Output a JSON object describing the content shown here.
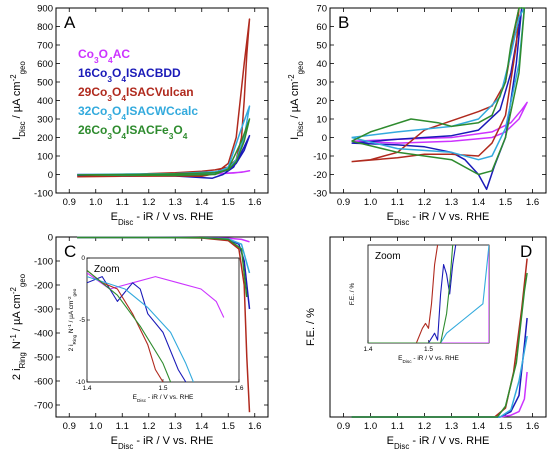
{
  "colors": {
    "AC": "#cc33ff",
    "BDD": "#1a1ab8",
    "Vulcan": "#b02a1e",
    "WCcalc": "#33aadd",
    "Fe": "#2e8b2e"
  },
  "chart_data": [
    {
      "panel": "A",
      "type": "line",
      "title": "A",
      "xlabel": "E_Disc - iR / V vs. RHE",
      "ylabel": "I_Disc / µA cm^-2_geo",
      "xlim": [
        0.85,
        1.65
      ],
      "ylim": [
        -100,
        900
      ],
      "xticks": [
        "0.9",
        "1.0",
        "1.1",
        "1.2",
        "1.3",
        "1.4",
        "1.5",
        "1.6"
      ],
      "yticks": [
        "-100",
        "0",
        "100",
        "200",
        "300",
        "400",
        "500",
        "600",
        "700",
        "800",
        "900"
      ],
      "legend": [
        "Co3O4AC",
        "16Co3O4ISACBDD",
        "29Co3O4ISACVulcan",
        "32Co3O4ISACWCcalc",
        "26Co3O4ISACFe3O4"
      ],
      "series": [
        {
          "key": "AC",
          "x": [
            0.93,
            1.1,
            1.3,
            1.45,
            1.52,
            1.56,
            1.58,
            1.55,
            1.45,
            1.3,
            1.1,
            0.93
          ],
          "y": [
            0,
            0,
            1,
            3,
            8,
            15,
            20,
            12,
            3,
            0,
            -1,
            0
          ]
        },
        {
          "key": "BDD",
          "x": [
            0.93,
            1.1,
            1.3,
            1.42,
            1.47,
            1.5,
            1.53,
            1.56,
            1.58,
            1.56,
            1.52,
            1.48,
            1.44,
            1.3,
            1.1,
            0.93
          ],
          "y": [
            -5,
            -4,
            0,
            5,
            12,
            25,
            60,
            130,
            210,
            150,
            40,
            0,
            -20,
            -8,
            -5,
            -5
          ]
        },
        {
          "key": "Vulcan",
          "x": [
            0.93,
            1.0,
            1.1,
            1.2,
            1.3,
            1.4,
            1.45,
            1.5,
            1.53,
            1.55,
            1.56,
            1.57,
            1.58,
            1.56,
            1.53,
            1.5,
            1.45,
            1.4,
            1.3,
            1.1,
            0.93
          ],
          "y": [
            -12,
            -10,
            -5,
            5,
            10,
            18,
            25,
            40,
            80,
            200,
            400,
            650,
            840,
            600,
            200,
            60,
            5,
            -10,
            -8,
            -10,
            -12
          ]
        },
        {
          "key": "WCcalc",
          "x": [
            0.93,
            1.1,
            1.3,
            1.45,
            1.5,
            1.53,
            1.56,
            1.58,
            1.55,
            1.5,
            1.45,
            1.3,
            1.1,
            0.93
          ],
          "y": [
            0,
            2,
            5,
            15,
            30,
            80,
            200,
            370,
            250,
            40,
            5,
            -3,
            -5,
            0
          ]
        },
        {
          "key": "Fe",
          "x": [
            0.93,
            1.1,
            1.3,
            1.45,
            1.5,
            1.53,
            1.56,
            1.58,
            1.55,
            1.5,
            1.45,
            1.3,
            1.1,
            0.93
          ],
          "y": [
            -2,
            0,
            3,
            10,
            25,
            70,
            180,
            300,
            180,
            30,
            0,
            -5,
            -3,
            -2
          ]
        }
      ]
    },
    {
      "panel": "B",
      "type": "line",
      "title": "B",
      "xlabel": "E_Disc - iR / V vs. RHE",
      "ylabel": "I_Disc / µA cm^-2_geo",
      "xlim": [
        0.85,
        1.65
      ],
      "ylim": [
        -30,
        70
      ],
      "xticks": [
        "0.9",
        "1.0",
        "1.1",
        "1.2",
        "1.3",
        "1.4",
        "1.5",
        "1.6"
      ],
      "yticks": [
        "-30",
        "-20",
        "-10",
        "0",
        "10",
        "20",
        "30",
        "40",
        "50",
        "60",
        "70"
      ],
      "series": [
        {
          "key": "AC",
          "x": [
            0.93,
            1.1,
            1.3,
            1.45,
            1.52,
            1.56,
            1.58,
            1.55,
            1.5,
            1.45,
            1.3,
            1.1,
            0.93
          ],
          "y": [
            -2,
            -1,
            0,
            3,
            8,
            15,
            19,
            10,
            3,
            0,
            -2,
            -3,
            -2
          ]
        },
        {
          "key": "BDD",
          "x": [
            0.93,
            1.1,
            1.3,
            1.4,
            1.48,
            1.52,
            1.55,
            1.56,
            1.54,
            1.5,
            1.46,
            1.43,
            1.4,
            1.35,
            1.3,
            1.2,
            1.1,
            0.93
          ],
          "y": [
            -3,
            -1,
            1,
            4,
            15,
            35,
            60,
            70,
            40,
            0,
            -15,
            -28,
            -20,
            -12,
            -8,
            -5,
            -4,
            -3
          ]
        },
        {
          "key": "Vulcan",
          "x": [
            0.93,
            1.0,
            1.1,
            1.2,
            1.3,
            1.4,
            1.45,
            1.5,
            1.53,
            1.55,
            1.54,
            1.5,
            1.45,
            1.4,
            1.3,
            1.2,
            1.1,
            0.93
          ],
          "y": [
            -13,
            -12,
            -8,
            4,
            9,
            14,
            17,
            30,
            55,
            70,
            50,
            12,
            -3,
            -10,
            -9,
            -9,
            -11,
            -13
          ]
        },
        {
          "key": "WCcalc",
          "x": [
            0.93,
            1.1,
            1.3,
            1.4,
            1.48,
            1.52,
            1.55,
            1.57,
            1.55,
            1.5,
            1.45,
            1.4,
            1.3,
            1.1,
            0.93
          ],
          "y": [
            0,
            3,
            6,
            10,
            22,
            45,
            65,
            70,
            40,
            5,
            -10,
            -12,
            -8,
            -6,
            0
          ]
        },
        {
          "key": "Fe",
          "x": [
            0.93,
            1.0,
            1.15,
            1.25,
            1.3,
            1.4,
            1.45,
            1.5,
            1.52,
            1.55,
            1.57,
            1.55,
            1.5,
            1.45,
            1.4,
            1.3,
            1.1,
            0.93
          ],
          "y": [
            -2,
            3,
            10,
            8,
            6,
            8,
            12,
            30,
            50,
            70,
            70,
            35,
            0,
            -18,
            -20,
            -12,
            -8,
            -2
          ]
        }
      ]
    },
    {
      "panel": "C",
      "type": "line",
      "title": "C",
      "xlabel": "E_Disc - iR / V vs. RHE",
      "ylabel": "2 i_Ring N^-1 / µA cm^-2_geo",
      "xlim": [
        0.85,
        1.65
      ],
      "ylim": [
        -750,
        0
      ],
      "xticks": [
        "0.9",
        "1.0",
        "1.1",
        "1.2",
        "1.3",
        "1.4",
        "1.5",
        "1.6"
      ],
      "yticks": [
        "0",
        "-100",
        "-200",
        "-300",
        "-400",
        "-500",
        "-600",
        "-700"
      ],
      "series": [
        {
          "key": "AC",
          "x": [
            0.93,
            1.2,
            1.4,
            1.5,
            1.55,
            1.58
          ],
          "y": [
            -2,
            -2,
            -3,
            -5,
            -10,
            -20
          ]
        },
        {
          "key": "BDD",
          "x": [
            0.93,
            1.2,
            1.4,
            1.5,
            1.54,
            1.56,
            1.58
          ],
          "y": [
            -2,
            -2,
            -3,
            -10,
            -30,
            -100,
            -300
          ]
        },
        {
          "key": "Vulcan",
          "x": [
            0.93,
            1.2,
            1.4,
            1.5,
            1.54,
            1.56,
            1.57,
            1.58
          ],
          "y": [
            -2,
            -2,
            -4,
            -15,
            -50,
            -200,
            -500,
            -730
          ]
        },
        {
          "key": "WCcalc",
          "x": [
            0.93,
            1.2,
            1.4,
            1.5,
            1.55,
            1.58
          ],
          "y": [
            -2,
            -2,
            -3,
            -8,
            -30,
            -150
          ]
        },
        {
          "key": "Fe",
          "x": [
            0.93,
            1.2,
            1.4,
            1.5,
            1.55,
            1.57
          ],
          "y": [
            -2,
            -2,
            -3,
            -10,
            -50,
            -250
          ]
        }
      ],
      "inset": {
        "title": "Zoom",
        "xlabel": "E_Disc - iR / V vs. RHE",
        "ylabel": "2 i_Ring N^-1 / µA cm^-2_geo",
        "xlim": [
          1.4,
          1.6
        ],
        "ylim": [
          -10,
          0
        ],
        "xticks": [
          "1.4",
          "1.5",
          "1.6"
        ],
        "yticks": [
          "0",
          "-5",
          "-10"
        ],
        "series": [
          {
            "key": "AC",
            "x": [
              1.4,
              1.43,
              1.46,
              1.49,
              1.52,
              1.55,
              1.57,
              1.58
            ],
            "y": [
              -1.2,
              -2.5,
              -2.0,
              -1.5,
              -2.0,
              -2.5,
              -3.5,
              -4.8
            ]
          },
          {
            "key": "BDD",
            "x": [
              1.4,
              1.42,
              1.44,
              1.46,
              1.47,
              1.48,
              1.5,
              1.52,
              1.53
            ],
            "y": [
              -2.0,
              -1.5,
              -3.5,
              -2.0,
              -2.5,
              -4.5,
              -6.0,
              -9.0,
              -10.0
            ]
          },
          {
            "key": "Vulcan",
            "x": [
              1.4,
              1.42,
              1.44,
              1.46,
              1.48,
              1.49,
              1.5
            ],
            "y": [
              -1.0,
              -2.0,
              -2.5,
              -4.5,
              -7.0,
              -9.0,
              -10.0
            ]
          },
          {
            "key": "WCcalc",
            "x": [
              1.4,
              1.45,
              1.48,
              1.51,
              1.53,
              1.54
            ],
            "y": [
              -1.5,
              -2.5,
              -4.0,
              -6.0,
              -8.5,
              -10.0
            ]
          },
          {
            "key": "Fe",
            "x": [
              1.4,
              1.44,
              1.47,
              1.5,
              1.51
            ],
            "y": [
              -1.0,
              -3.0,
              -5.5,
              -8.5,
              -10.0
            ]
          }
        ]
      }
    },
    {
      "panel": "D",
      "type": "line",
      "title": "D",
      "xlabel": "E_Disc - iR / V vs. RHE",
      "ylabel": "F.E. / %",
      "xlim": [
        0.85,
        1.65
      ],
      "ylim": [
        0,
        100
      ],
      "xticks": [
        "0.9",
        "1.0",
        "1.1",
        "1.2",
        "1.3",
        "1.4",
        "1.5",
        "1.6"
      ],
      "yticks": [],
      "series": [
        {
          "key": "AC",
          "x": [
            0.93,
            1.48,
            1.52,
            1.55,
            1.57,
            1.58
          ],
          "y": [
            0,
            0,
            1,
            3,
            10,
            25
          ]
        },
        {
          "key": "BDD",
          "x": [
            0.93,
            1.48,
            1.52,
            1.55,
            1.57,
            1.58
          ],
          "y": [
            0,
            0,
            3,
            12,
            40,
            55
          ]
        },
        {
          "key": "Vulcan",
          "x": [
            0.93,
            1.46,
            1.5,
            1.53,
            1.56,
            1.58
          ],
          "y": [
            0,
            0,
            5,
            25,
            60,
            88
          ]
        },
        {
          "key": "WCcalc",
          "x": [
            0.93,
            1.48,
            1.52,
            1.55,
            1.58
          ],
          "y": [
            0,
            0,
            4,
            20,
            45
          ]
        },
        {
          "key": "Fe",
          "x": [
            0.93,
            1.47,
            1.5,
            1.54,
            1.57,
            1.58
          ],
          "y": [
            0,
            0,
            6,
            30,
            70,
            80
          ]
        }
      ],
      "inset": {
        "title": "Zoom",
        "xlabel": "E_Disc - iR / V vs. RHE",
        "ylabel": "F.E. / %",
        "xlim": [
          1.4,
          1.6
        ],
        "ylim": [
          0,
          10
        ],
        "xticks": [
          "1.4",
          "1.5"
        ],
        "yticks": [],
        "series": [
          {
            "key": "AC",
            "x": [
              1.4,
              1.6,
              1.6
            ],
            "y": [
              0,
              0,
              10
            ]
          },
          {
            "key": "BDD",
            "x": [
              1.4,
              1.5,
              1.51,
              1.515,
              1.52,
              1.525,
              1.53,
              1.535,
              1.54,
              1.545
            ],
            "y": [
              0,
              0,
              1,
              0.3,
              5,
              8,
              7,
              5,
              8,
              10
            ]
          },
          {
            "key": "Vulcan",
            "x": [
              1.4,
              1.48,
              1.49,
              1.495,
              1.5,
              1.505,
              1.51,
              1.515
            ],
            "y": [
              0,
              0,
              1.5,
              2,
              1.5,
              4,
              8,
              10
            ]
          },
          {
            "key": "WCcalc",
            "x": [
              1.4,
              1.52,
              1.53,
              1.56,
              1.59,
              1.6
            ],
            "y": [
              0,
              0,
              1,
              2.5,
              4,
              10
            ]
          },
          {
            "key": "Fe",
            "x": [
              1.4,
              1.52,
              1.525,
              1.53,
              1.535,
              1.54
            ],
            "y": [
              0,
              0,
              1.5,
              3,
              6,
              10
            ]
          }
        ]
      }
    }
  ]
}
